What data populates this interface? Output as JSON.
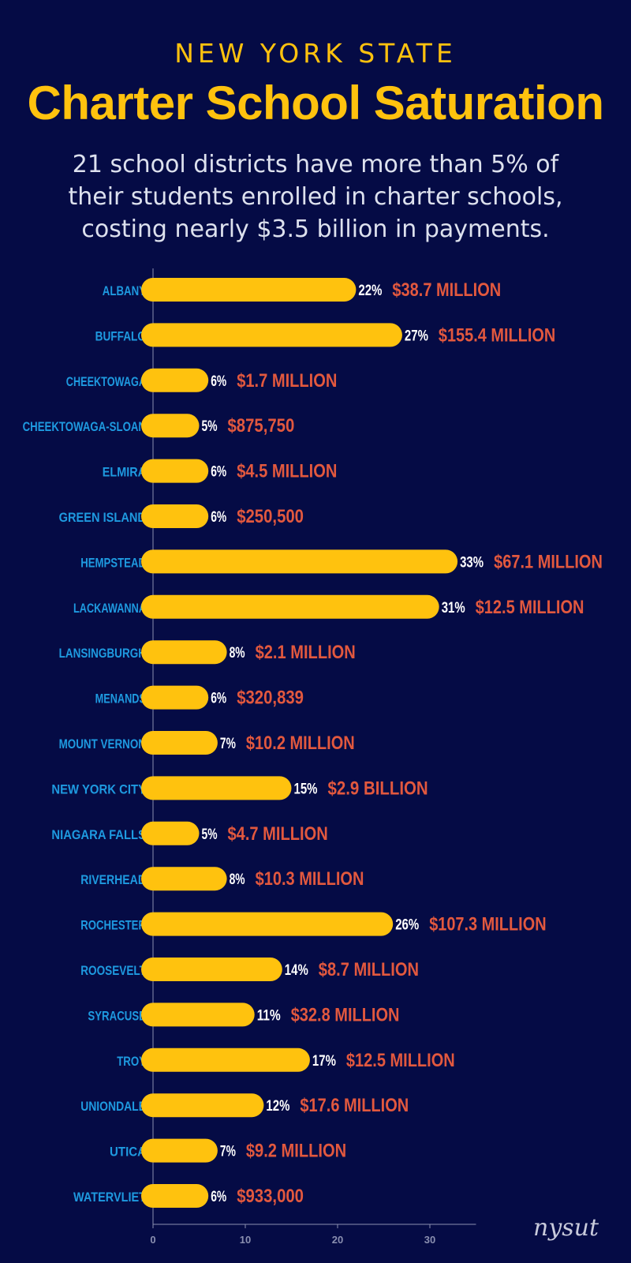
{
  "header": {
    "kicker": "NEW YORK STATE",
    "title": "Charter School Saturation",
    "subtitle": "21 school districts have more than 5% of their students enrolled in charter schools, costing nearly $3.5 billion in payments."
  },
  "logo": {
    "text": "nysut"
  },
  "colors": {
    "background": "#050b45",
    "bar": "#ffc20e",
    "category_label": "#1e9ae0",
    "percent_label": "#ffffff",
    "cost_label": "#e2583e",
    "axis": "#8a8fb0"
  },
  "chart_data": {
    "type": "bar",
    "orientation": "horizontal",
    "categories": [
      "ALBANY",
      "BUFFALO",
      "CHEEKTOWAGA",
      "CHEEKTOWAGA-SLOAN",
      "ELMIRA",
      "GREEN ISLAND",
      "HEMPSTEAD",
      "LACKAWANNA",
      "LANSINGBURGH",
      "MENANDS",
      "MOUNT VERNON",
      "NEW YORK CITY",
      "NIAGARA FALLS",
      "RIVERHEAD",
      "ROCHESTER",
      "ROOSEVELT",
      "SYRACUSE",
      "TROY",
      "UNIONDALE",
      "UTICA",
      "WATERVLIET"
    ],
    "values": [
      22,
      27,
      6,
      5,
      6,
      6,
      33,
      31,
      8,
      6,
      7,
      15,
      5,
      8,
      26,
      14,
      11,
      17,
      12,
      7,
      6
    ],
    "value_labels": [
      "22%",
      "27%",
      "6%",
      "5%",
      "6%",
      "6%",
      "33%",
      "31%",
      "8%",
      "6%",
      "7%",
      "15%",
      "5%",
      "8%",
      "26%",
      "14%",
      "11%",
      "17%",
      "12%",
      "7%",
      "6%"
    ],
    "cost_labels": [
      "$38.7 MILLION",
      "$155.4 MILLION",
      "$1.7 MILLION",
      "$875,750",
      "$4.5 MILLION",
      "$250,500",
      "$67.1 MILLION",
      "$12.5 MILLION",
      "$2.1 MILLION",
      "$320,839",
      "$10.2 MILLION",
      "$2.9 BILLION",
      "$4.7 MILLION",
      "$10.3 MILLION",
      "$107.3 MILLION",
      "$8.7 MILLION",
      "$32.8 MILLION",
      "$12.5 MILLION",
      "$17.6 MILLION",
      "$9.2 MILLION",
      "$933,000"
    ],
    "xlim": [
      0,
      35
    ],
    "xticks": [
      0,
      10,
      20,
      30
    ],
    "xlabel": "",
    "ylabel": "",
    "grid": false
  }
}
